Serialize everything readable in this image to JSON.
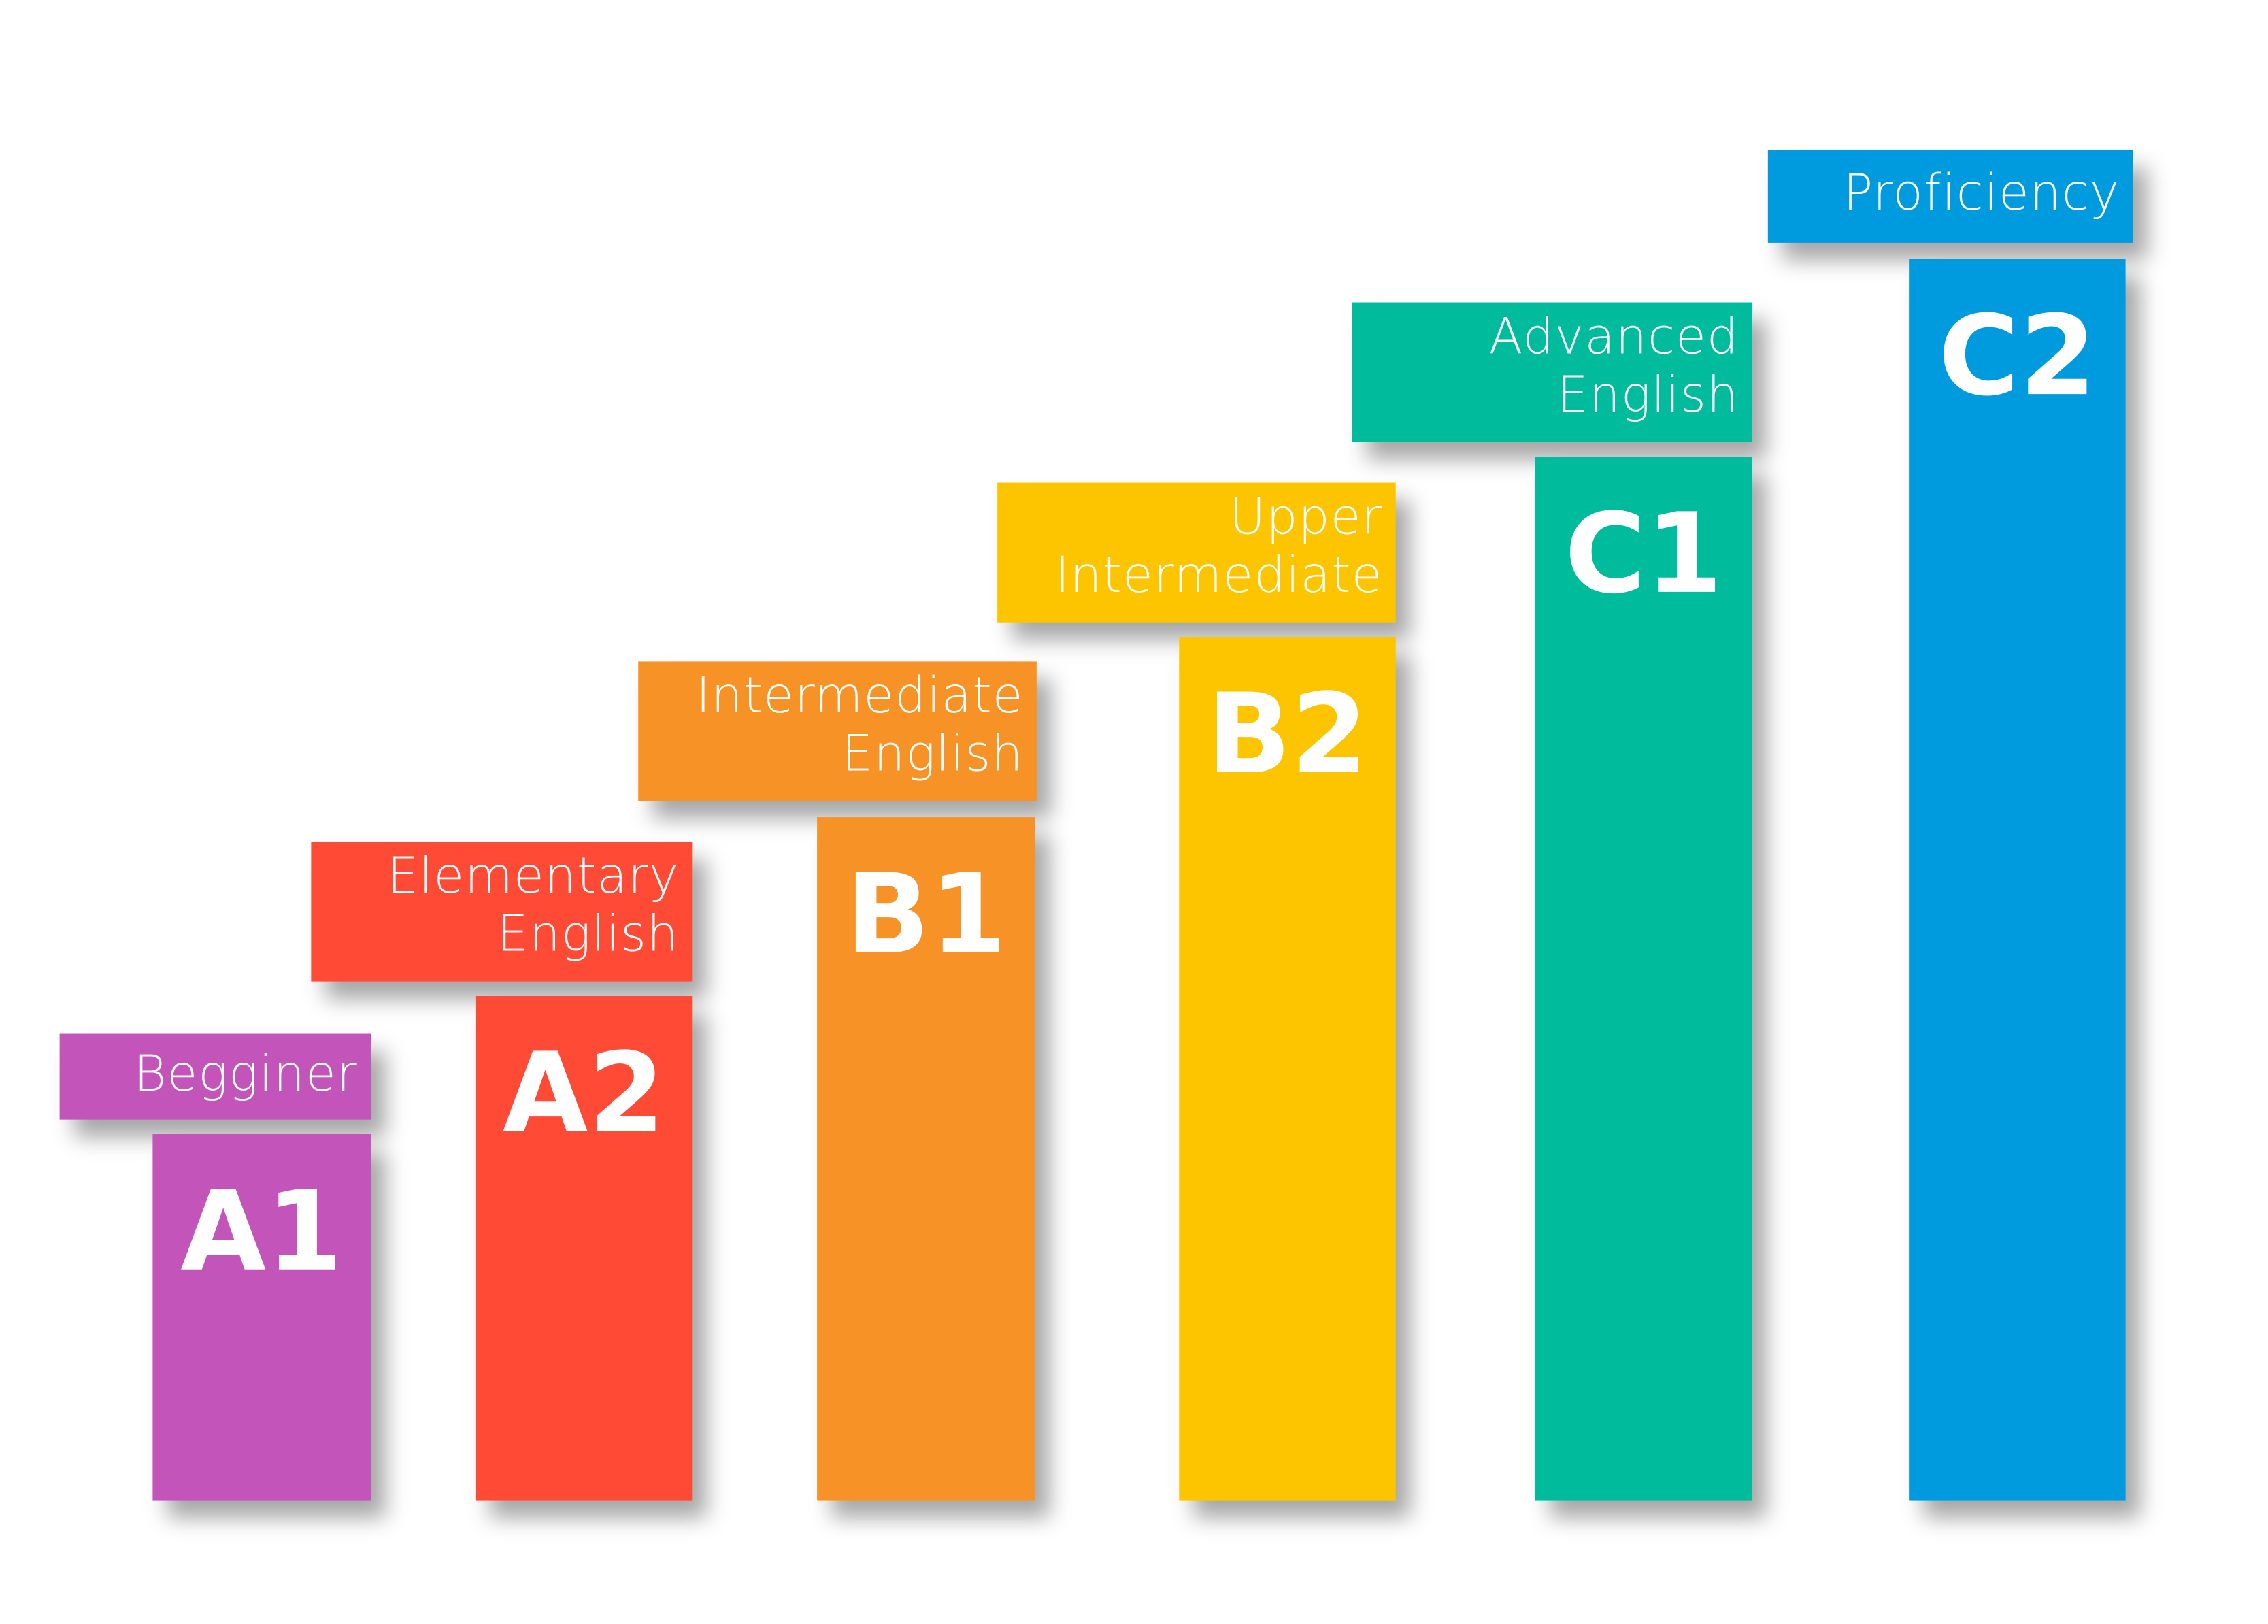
{
  "levels": [
    {
      "code": "A1",
      "label_line1": "Begginer",
      "label_line2": "",
      "color": "#C254BA"
    },
    {
      "code": "A2",
      "label_line1": "Elementary",
      "label_line2": "English",
      "color": "#FF4A36"
    },
    {
      "code": "B1",
      "label_line1": "Intermediate",
      "label_line2": "English",
      "color": "#F79226"
    },
    {
      "code": "B2",
      "label_line1": "Upper",
      "label_line2": "Intermediate",
      "color": "#FCC500"
    },
    {
      "code": "C1",
      "label_line1": "Advanced",
      "label_line2": "English",
      "color": "#00BC9D"
    },
    {
      "code": "C2",
      "label_line1": "Proficiency",
      "label_line2": "",
      "color": "#009BDF"
    }
  ]
}
